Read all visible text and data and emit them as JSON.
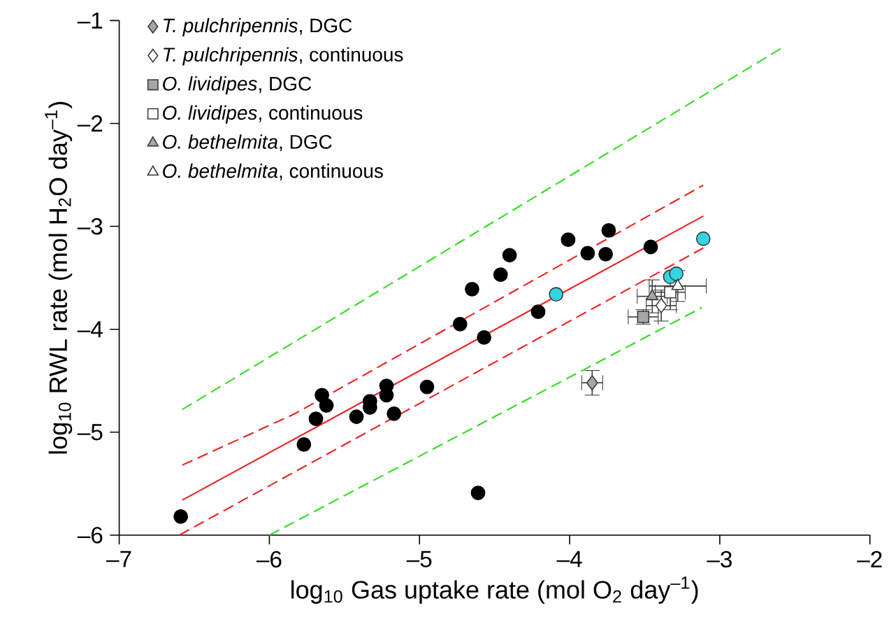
{
  "chart_data": {
    "type": "scatter",
    "xlabel": "log$_{10}$ Gas uptake rate (mol O$_{2}$ day$^{–1}$)",
    "ylabel": "log$_{10}$ RWL rate (mol H$_{2}$O day$^{–1}$)",
    "xlim": [
      -7,
      -2
    ],
    "ylim": [
      -6,
      -1
    ],
    "xticks": [
      {
        "value": -7,
        "label": "–7"
      },
      {
        "value": -6,
        "label": "–6"
      },
      {
        "value": -5,
        "label": "–5"
      },
      {
        "value": -4,
        "label": "–4"
      },
      {
        "value": -3,
        "label": "–3"
      },
      {
        "value": -2,
        "label": "–2"
      }
    ],
    "yticks": [
      {
        "value": -6,
        "label": "–6"
      },
      {
        "value": -5,
        "label": "–5"
      },
      {
        "value": -4,
        "label": "–4"
      },
      {
        "value": -3,
        "label": "–3"
      },
      {
        "value": -2,
        "label": "–2"
      },
      {
        "value": -1,
        "label": "–1"
      }
    ],
    "legend": "top left",
    "series": [
      {
        "type": "line",
        "color": "#33dd22",
        "line_style": "dashed",
        "x": [
          -6.58,
          -2.59
        ],
        "values": [
          -4.78,
          -1.27
        ]
      },
      {
        "type": "line",
        "color": "#33dd22",
        "line_style": "dashed",
        "x": [
          -6.0,
          -3.12
        ],
        "values": [
          -6.0,
          -3.79
        ]
      },
      {
        "type": "line",
        "color": "#ee2222",
        "line_style": "dashed",
        "x": [
          -6.58,
          -5.83,
          -3.11
        ],
        "values": [
          -5.32,
          -4.82,
          -2.6
        ]
      },
      {
        "type": "line",
        "color": "#ee2222",
        "line_style": "dashed",
        "x": [
          -6.6,
          -3.11
        ],
        "values": [
          -6.0,
          -3.21
        ]
      },
      {
        "type": "line",
        "color": "#ee2222",
        "line_style": "solid",
        "x": [
          -6.58,
          -3.11
        ],
        "values": [
          -5.66,
          -2.9
        ]
      },
      {
        "marker": "circle",
        "color": "#000000",
        "x": [
          -6.59,
          -5.77,
          -5.69,
          -5.65,
          -5.62,
          -5.42,
          -5.33,
          -5.33,
          -5.22,
          -5.22,
          -5.17,
          -4.95,
          -4.73,
          -4.65,
          -4.57,
          -4.61,
          -4.46,
          -4.4,
          -4.21,
          -4.01,
          -3.88,
          -3.76,
          -3.74,
          -3.46
        ],
        "values": [
          -5.82,
          -5.12,
          -4.87,
          -4.64,
          -4.74,
          -4.85,
          -4.7,
          -4.76,
          -4.55,
          -4.64,
          -4.82,
          -4.56,
          -3.95,
          -3.61,
          -4.08,
          -5.59,
          -3.47,
          -3.28,
          -3.83,
          -3.13,
          -3.26,
          -3.27,
          -3.04,
          -3.2
        ]
      },
      {
        "marker": "circle",
        "color": "#33d6e0",
        "x": [
          -4.09,
          -3.11,
          -3.33,
          -3.29
        ],
        "values": [
          -3.66,
          -3.12,
          -3.49,
          -3.46
        ]
      },
      {
        "marker": "diamond",
        "color": "#a6a6a6",
        "name": "*T. pulchripennis*, DGC",
        "x": [
          -3.85
        ],
        "values": [
          -4.52
        ],
        "errors": [
          0.12
        ],
        "xerrors": [
          0.07
        ]
      },
      {
        "marker": "diamond",
        "color": "#ffffff",
        "name": "*T. pulchripennis*, continuous",
        "x": [
          -3.39
        ],
        "values": [
          -3.77
        ],
        "errors": [
          0.15
        ],
        "xerrors": [
          0.1
        ]
      },
      {
        "marker": "square",
        "color": "#a6a6a6",
        "name": "*O. lividipes*, DGC",
        "x": [
          -3.51
        ],
        "values": [
          -3.88
        ],
        "errors": [
          0.07
        ],
        "xerrors": [
          0.1
        ]
      },
      {
        "marker": "square",
        "color": "#ffffff",
        "name": "*O. lividipes*, continuous",
        "x": [
          -3.33
        ],
        "values": [
          -3.64
        ],
        "errors": [
          0.17
        ],
        "xerrors": [
          0.1
        ]
      },
      {
        "marker": "triangle",
        "color": "#a6a6a6",
        "name": "*O. bethelmita*, DGC",
        "x": [
          -3.45
        ],
        "values": [
          -3.68
        ],
        "errors": [
          0.16
        ],
        "xerrors": [
          0.1
        ]
      },
      {
        "marker": "triangle",
        "color": "#ffffff",
        "name": "*O. bethelmita*, continuous",
        "x": [
          -3.28
        ],
        "values": [
          -3.58
        ],
        "errors": [
          0.15
        ],
        "xerrors": [
          0.19
        ]
      }
    ]
  }
}
